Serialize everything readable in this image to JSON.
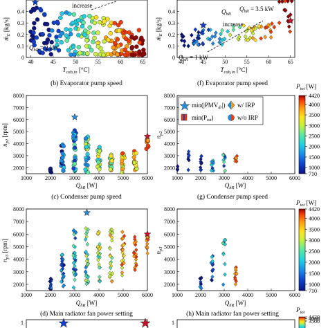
{
  "colorscale": [
    "#0a1580",
    "#1040c8",
    "#1a8ce8",
    "#22cfe0",
    "#5ee8a0",
    "#c8f040",
    "#ffe020",
    "#ff9a10",
    "#f23a08",
    "#900000"
  ],
  "captions": {
    "b": "(b) Evaporator pump speed",
    "c": "(c) Condenser pump speed",
    "d": "(d) Main radiator fan power setting",
    "f": "(f) Evaporator pump speed",
    "g": "(g) Condenser pump speed",
    "h": "(h) Main radiator fan power setting"
  },
  "annotations": {
    "a_increase": "increase",
    "a_q2": "Q",
    "a_q2_sub": "hR",
    "a_q2_val": " = 2 kW",
    "e_q35": "Q",
    "e_q35_sub": "hR",
    "e_q35_val": " = 3.5 kW",
    "e_qhr": "Q",
    "e_qhr_sub": "hR",
    "e_increase": "increase",
    "e_q1": "Q",
    "e_q1_sub": "hR",
    "e_q1_val": " = 1 kW"
  },
  "legend": {
    "item1": "min(|PMV",
    "item1_sub": "dr",
    "item1_end": "|)",
    "item2": "min(P",
    "item2_sub": "tot",
    "item2_end": ")",
    "item3": "w/ IRP",
    "item4": "w/o IRP"
  },
  "chart_data": [
    {
      "id": "a",
      "type": "scatter",
      "xlabel": "T",
      "xlabel_sub": "cab,in",
      "xlabel_unit": " [°C]",
      "ylabel": "ṁ",
      "ylabel_sub": "E",
      "ylabel_unit": " [kg/s]",
      "xlim": [
        39,
        66
      ],
      "ylim": [
        0,
        0.5
      ],
      "xticks": [
        "40",
        "45",
        "50",
        "55",
        "60",
        "65"
      ],
      "xtick_values": [
        40,
        45,
        50,
        55,
        60,
        65
      ],
      "yticks": [
        "0",
        "0.1",
        "0.2",
        "0.3",
        "0.4"
      ],
      "ytick_values": [
        0,
        0.1,
        0.2,
        0.3,
        0.4
      ]
    },
    {
      "id": "e",
      "type": "scatter",
      "xlabel": "T",
      "xlabel_sub": "cab,in",
      "xlabel_unit": " [°C]",
      "ylabel": "ṁ",
      "ylabel_sub": "E",
      "ylabel_unit": " [kg/s]",
      "xlim": [
        39,
        66
      ],
      "ylim": [
        0,
        0.5
      ],
      "xticks": [
        "40",
        "45",
        "50",
        "55",
        "60",
        "65"
      ],
      "xtick_values": [
        40,
        45,
        50,
        55,
        60,
        65
      ],
      "yticks": [
        "0",
        "0.1",
        "0.2",
        "0.3",
        "0.4"
      ],
      "ytick_values": [
        0,
        0.1,
        0.2,
        0.3,
        0.4
      ]
    },
    {
      "id": "b",
      "type": "scatter",
      "xlabel": "Q",
      "xlabel_sub": "hR",
      "xlabel_unit": " [W]",
      "ylabel": "n",
      "ylabel_sub": "p2",
      "ylabel_unit": " [rpm]",
      "xlim": [
        1000,
        6000
      ],
      "ylim": [
        1500,
        8000
      ],
      "xticks": [
        "1000",
        "2000",
        "3000",
        "4000",
        "5000",
        "6000"
      ],
      "xtick_values": [
        1000,
        2000,
        3000,
        4000,
        5000,
        6000
      ],
      "yticks": [
        "2000",
        "3000",
        "4000",
        "5000",
        "6000",
        "7000",
        "8000"
      ],
      "ytick_values": [
        2000,
        3000,
        4000,
        5000,
        6000,
        7000,
        8000
      ]
    },
    {
      "id": "f",
      "type": "scatter",
      "xlabel": "Q",
      "xlabel_sub": "hR",
      "xlabel_unit": " [W]",
      "ylabel": "n",
      "ylabel_sub": "p2",
      "ylabel_unit": "",
      "xlim": [
        1000,
        6000
      ],
      "ylim": [
        1500,
        8000
      ],
      "xticks": [
        "1000",
        "2000",
        "3000",
        "4000",
        "5000",
        "6000"
      ],
      "xtick_values": [
        1000,
        2000,
        3000,
        4000,
        5000,
        6000
      ],
      "yticks": [
        "2000",
        "3000",
        "4000",
        "5000",
        "6000",
        "7000",
        "8000"
      ],
      "ytick_values": [
        2000,
        3000,
        4000,
        5000,
        6000,
        7000,
        8000
      ]
    },
    {
      "id": "c",
      "type": "scatter",
      "xlabel": "Q",
      "xlabel_sub": "hR",
      "xlabel_unit": " [W]",
      "ylabel": "n",
      "ylabel_sub": "p3",
      "ylabel_unit": " [rpm]",
      "xlim": [
        1000,
        6000
      ],
      "ylim": [
        1500,
        8000
      ],
      "xticks": [
        "1000",
        "2000",
        "3000",
        "4000",
        "5000",
        "6000"
      ],
      "xtick_values": [
        1000,
        2000,
        3000,
        4000,
        5000,
        6000
      ],
      "yticks": [
        "2000",
        "3000",
        "4000",
        "5000",
        "6000",
        "7000",
        "8000"
      ],
      "ytick_values": [
        2000,
        3000,
        4000,
        5000,
        6000,
        7000,
        8000
      ]
    },
    {
      "id": "g",
      "type": "scatter",
      "xlabel": "Q",
      "xlabel_sub": "hR",
      "xlabel_unit": " [W]",
      "ylabel": "n",
      "ylabel_sub": "p3",
      "ylabel_unit": "",
      "xlim": [
        1000,
        6000
      ],
      "ylim": [
        1500,
        8000
      ],
      "xticks": [
        "1000",
        "2000",
        "3000",
        "4000",
        "5000",
        "6000"
      ],
      "xtick_values": [
        1000,
        2000,
        3000,
        4000,
        5000,
        6000
      ],
      "yticks": [
        "2000",
        "3000",
        "4000",
        "5000",
        "6000",
        "7000",
        "8000"
      ],
      "ytick_values": [
        2000,
        3000,
        4000,
        5000,
        6000,
        7000,
        8000
      ]
    },
    {
      "id": "bottom_left",
      "type": "scatter",
      "yticks": [
        "1"
      ]
    },
    {
      "id": "bottom_right",
      "type": "scatter",
      "yticks": [
        "1"
      ]
    },
    {
      "id": "cb1",
      "type": "heatmap",
      "label": "P",
      "label_sub": "tot",
      "label_unit": " [W]",
      "ticks": [
        "4420",
        "4000",
        "3500",
        "3000",
        "2500",
        "2000",
        "1500",
        "1000",
        "710"
      ],
      "tick_values": [
        4420,
        4000,
        3500,
        3000,
        2500,
        2000,
        1500,
        1000,
        710
      ],
      "range": [
        710,
        4420
      ]
    },
    {
      "id": "cb2",
      "type": "heatmap",
      "label": "P",
      "label_sub": "tot",
      "label_unit": " [W]",
      "ticks": [
        "4420",
        "4000",
        "3500",
        "3000",
        "2500",
        "2000",
        "1500",
        "1000",
        "710"
      ],
      "tick_values": [
        4420,
        4000,
        3500,
        3000,
        2500,
        2000,
        1500,
        1000,
        710
      ],
      "range": [
        710,
        4420
      ]
    },
    {
      "id": "cb3",
      "type": "heatmap",
      "label": "P",
      "label_sub": "tot",
      "ticks": [
        "4420",
        "4000",
        "3500"
      ],
      "tick_values": [
        4420,
        4000,
        3500
      ],
      "range": [
        710,
        4420
      ]
    }
  ]
}
